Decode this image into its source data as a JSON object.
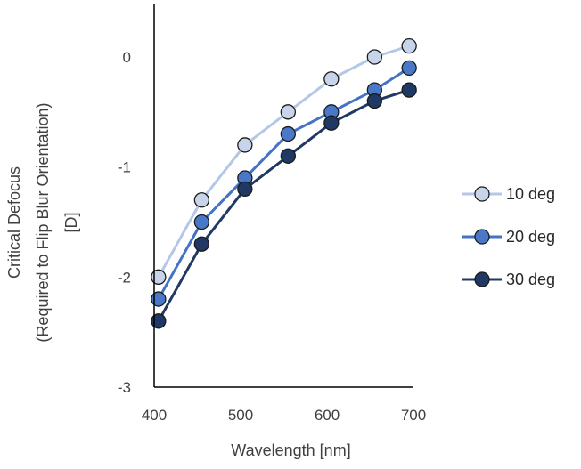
{
  "chart_data": {
    "type": "line",
    "title": "",
    "xlabel": "Wavelength [nm]",
    "ylabel_lines": [
      "Critical Defocus",
      "(Required to Flip Blur Orientation)",
      "[D]"
    ],
    "xlim": [
      400,
      700
    ],
    "ylim": [
      -3,
      0.5
    ],
    "x_ticks": [
      400,
      500,
      600,
      700
    ],
    "y_ticks": [
      0,
      -1,
      -2,
      -3
    ],
    "x": [
      405,
      455,
      505,
      555,
      605,
      655,
      695
    ],
    "grid": false,
    "legend_position": "right",
    "series": [
      {
        "name": "10 deg",
        "values": [
          -2.0,
          -1.3,
          -0.8,
          -0.5,
          -0.2,
          0.0,
          0.1
        ],
        "line_color": "#b4c7e7",
        "marker_fill": "#c8d4ea"
      },
      {
        "name": "20 deg",
        "values": [
          -2.2,
          -1.5,
          -1.1,
          -0.7,
          -0.5,
          -0.3,
          -0.1
        ],
        "line_color": "#4472c4",
        "marker_fill": "#4a78c8"
      },
      {
        "name": "30 deg",
        "values": [
          -2.4,
          -1.7,
          -1.2,
          -0.9,
          -0.6,
          -0.4,
          -0.3
        ],
        "line_color": "#1f3864",
        "marker_fill": "#203864"
      }
    ]
  }
}
